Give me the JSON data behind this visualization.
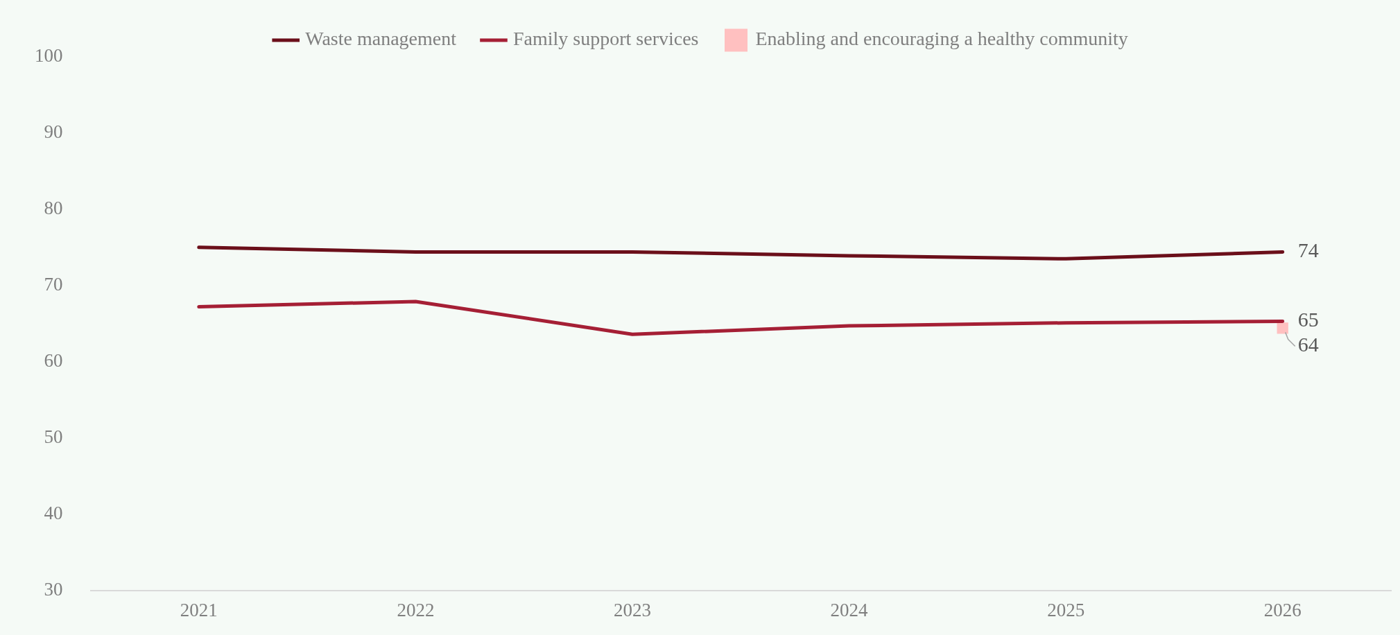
{
  "chart_data": {
    "type": "line",
    "categories": [
      "2021",
      "2022",
      "2023",
      "2024",
      "2025",
      "2026"
    ],
    "series": [
      {
        "name": "Waste management",
        "color": "#6b0f1a",
        "marker": "none",
        "values": [
          75.0,
          74.4,
          74.4,
          73.9,
          73.5,
          74.4
        ],
        "value_labels": [
          null,
          null,
          null,
          null,
          null,
          "74"
        ]
      },
      {
        "name": "Family support services",
        "color": "#a51f35",
        "marker": "none",
        "values": [
          67.2,
          67.9,
          63.6,
          64.7,
          65.1,
          65.3
        ],
        "value_labels": [
          null,
          null,
          null,
          null,
          null,
          "65"
        ]
      },
      {
        "name": "Enabling and encouraging a healthy community",
        "color": "#ffc0c0",
        "marker": "square",
        "values": [
          null,
          null,
          null,
          null,
          null,
          64.4
        ],
        "value_labels": [
          null,
          null,
          null,
          null,
          null,
          "64"
        ]
      }
    ],
    "ylim": [
      30,
      100
    ],
    "yticks": [
      30,
      40,
      50,
      60,
      70,
      80,
      90,
      100
    ],
    "grid": false,
    "legend": "top",
    "line_style": "solid"
  }
}
